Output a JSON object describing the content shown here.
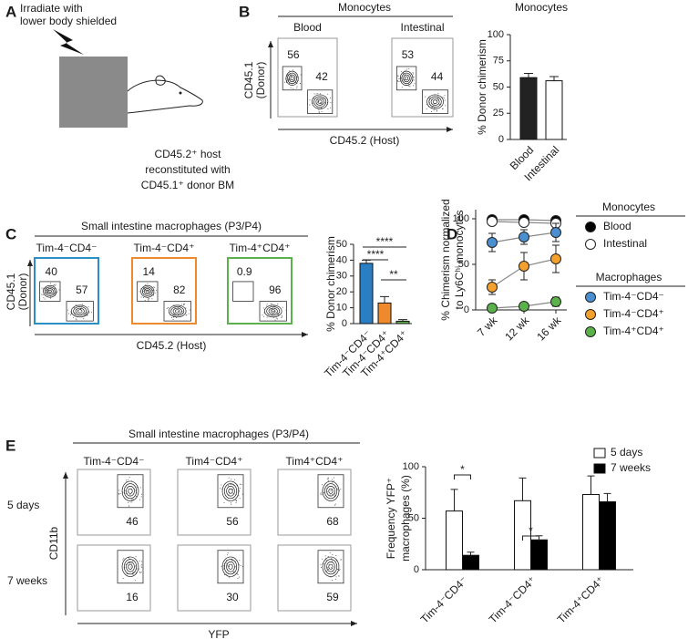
{
  "panel_labels": {
    "a": "A",
    "b": "B",
    "c": "C",
    "d": "D",
    "e": "E"
  },
  "panel_a": {
    "instruction": [
      "Irradiate with",
      "lower body shielded"
    ],
    "description": [
      "CD45.2⁺ host",
      "reconstituted with",
      "CD45.1⁺ donor BM"
    ]
  },
  "flow_b": {
    "header": "Monocytes",
    "plots": [
      {
        "title": "Blood",
        "gates": [
          56,
          42
        ]
      },
      {
        "title": "Intestinal",
        "gates": [
          53,
          44
        ]
      }
    ],
    "y_label": [
      "CD45.1",
      "(Donor)"
    ],
    "x_label": "CD45.2 (Host)"
  },
  "flow_c": {
    "header": "Small intestine macrophages (P3/P4)",
    "plots": [
      {
        "title": "Tim-4⁻CD4⁻",
        "color": "#2a8fc6",
        "gates": [
          40,
          57
        ]
      },
      {
        "title": "Tim-4⁻CD4⁺",
        "color": "#ee8a2c",
        "gates": [
          14,
          82
        ]
      },
      {
        "title": "Tim-4⁺CD4⁺",
        "color": "#5bb14a",
        "gates": [
          0.9,
          96
        ]
      }
    ],
    "y_label": [
      "CD45.1",
      "(Donor)"
    ],
    "x_label": "CD45.2 (Host)"
  },
  "flow_e": {
    "header": "Small intestine macrophages (P3/P4)",
    "columns": [
      "Tim-4⁻CD4⁻",
      "Tim4⁻CD4⁺",
      "Tim4⁺CD4⁺"
    ],
    "rows": [
      {
        "label": "5 days",
        "gates": [
          46,
          56,
          68
        ]
      },
      {
        "label": "7 weeks",
        "gates": [
          16,
          30,
          59
        ]
      }
    ],
    "y_label": "CD11b",
    "x_label": "YFP"
  },
  "chart_data": [
    {
      "type": "bar",
      "title": "Monocytes",
      "y_label": "% Donor chimerism",
      "categories": [
        "Blood",
        "Intestinal"
      ],
      "values": [
        59,
        56
      ],
      "errors": [
        4,
        4
      ],
      "colors": [
        "#222222",
        "#ffffff"
      ],
      "ylim": [
        0,
        100
      ],
      "yticks": [
        0,
        25,
        50,
        75,
        100
      ]
    },
    {
      "type": "bar",
      "y_label": "% Donor chimerism",
      "categories": [
        "Tim-4⁻CD4⁻",
        "Tim-4⁻CD4⁺",
        "Tim-4⁺CD4⁺"
      ],
      "values": [
        38,
        13,
        1.5
      ],
      "errors": [
        2,
        4,
        1
      ],
      "colors": [
        "#2a7fc4",
        "#ee8a2c",
        "#5bb14a"
      ],
      "ylim": [
        0,
        50
      ],
      "yticks": [
        0,
        10,
        20,
        30,
        40,
        50
      ],
      "annotations": [
        {
          "text": "****",
          "from": 0,
          "to": 2
        },
        {
          "text": "****",
          "from": 0,
          "to": 1
        },
        {
          "text": "**",
          "from": 1,
          "to": 2
        }
      ]
    },
    {
      "type": "line",
      "y_label": [
        "% Chimerism normalized",
        "to Ly6Cʰⁱ monocytes"
      ],
      "categories": [
        "7 wk",
        "12 wk",
        "16 wk"
      ],
      "ylim": [
        0,
        110
      ],
      "yticks": [
        0,
        50,
        100
      ],
      "legend_titles": [
        "Monocytes",
        "Macrophages"
      ],
      "series": [
        {
          "name": "Blood",
          "group": 0,
          "color": "#000000",
          "values": [
            99,
            99,
            98
          ],
          "errors": [
            2,
            3,
            2
          ]
        },
        {
          "name": "Intestinal",
          "group": 0,
          "color": "#ffffff",
          "values": [
            97,
            96,
            95
          ],
          "errors": [
            3,
            4,
            3
          ]
        },
        {
          "name": "Tim-4⁻CD4⁻",
          "group": 1,
          "color": "#4a8fd0",
          "values": [
            74,
            80,
            85
          ],
          "errors": [
            10,
            8,
            10
          ]
        },
        {
          "name": "Tim-4⁻CD4⁺",
          "group": 1,
          "color": "#f4a02c",
          "values": [
            25,
            48,
            56
          ],
          "errors": [
            8,
            15,
            15
          ]
        },
        {
          "name": "Tim-4⁺CD4⁺",
          "group": 1,
          "color": "#5bb14a",
          "values": [
            2,
            4,
            9
          ],
          "errors": [
            1,
            2,
            5
          ]
        }
      ]
    },
    {
      "type": "bar",
      "y_label": [
        "Frequency YFP⁺",
        "macrophages (%)"
      ],
      "categories": [
        "Tim-4⁻CD4⁻",
        "Tim-4⁻CD4⁺",
        "Tim-4⁺CD4⁺"
      ],
      "ylim": [
        0,
        100
      ],
      "yticks": [
        0,
        50,
        100
      ],
      "series": [
        {
          "name": "5 days",
          "color": "#ffffff",
          "values": [
            57,
            67,
            73
          ],
          "errors": [
            21,
            22,
            18
          ]
        },
        {
          "name": "7 weeks",
          "color": "#000000",
          "values": [
            14,
            29,
            66
          ],
          "errors": [
            3,
            4,
            8
          ]
        }
      ],
      "annotations": [
        {
          "text": "*",
          "category": 0
        },
        {
          "text": "*",
          "category": 1
        }
      ]
    }
  ]
}
